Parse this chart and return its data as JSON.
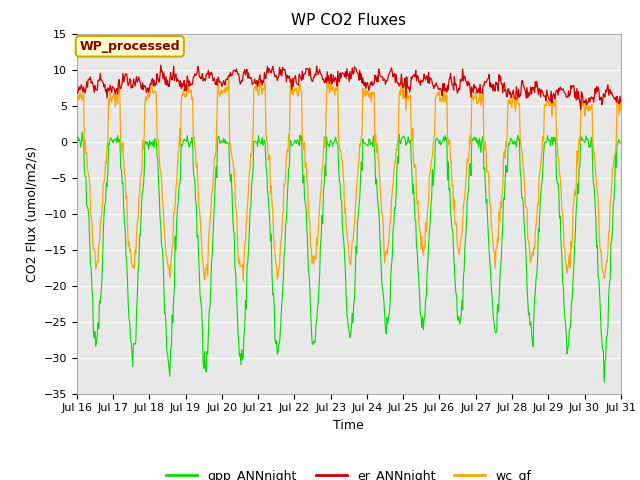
{
  "title": "WP CO2 Fluxes",
  "xlabel": "Time",
  "ylabel_display": "CO2 Flux (umol/m2/s)",
  "ylim": [
    -35,
    15
  ],
  "yticks": [
    -35,
    -30,
    -25,
    -20,
    -15,
    -10,
    -5,
    0,
    5,
    10,
    15
  ],
  "start_day": 16,
  "end_day": 31,
  "gpp_color": "#00DD00",
  "er_color": "#CC0000",
  "wc_color": "#FFA500",
  "bg_color": "#E8E8E8",
  "legend_labels": [
    "gpp_ANNnight",
    "er_ANNnight",
    "wc_gf"
  ],
  "annotation_text": "WP_processed",
  "annotation_facecolor": "#FFFFCC",
  "annotation_edgecolor": "#CCAA00",
  "annotation_textcolor": "#880000",
  "title_fontsize": 11,
  "axis_fontsize": 9,
  "tick_fontsize": 8,
  "legend_fontsize": 9
}
